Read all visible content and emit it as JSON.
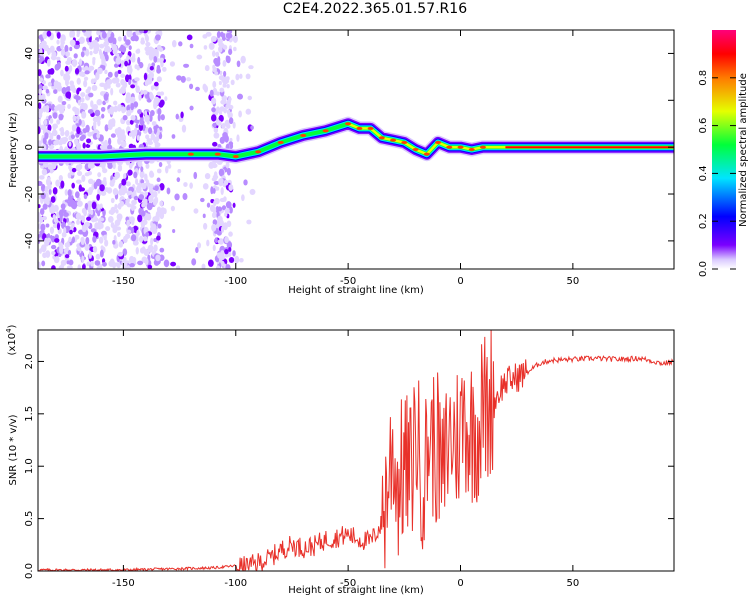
{
  "title": "C2E4.2022.365.01.57.R16",
  "chart_data": [
    {
      "type": "heatmap",
      "title": "C2E4.2022.365.01.57.R16",
      "xlabel": "Height of straight line (km)",
      "ylabel": "Frequency (Hz)",
      "xlim": [
        -188,
        95
      ],
      "ylim": [
        -52,
        50
      ],
      "xticks": [
        -150,
        -100,
        -50,
        0,
        50
      ],
      "yticks": [
        -40,
        -20,
        0,
        20,
        40
      ],
      "colorbar": {
        "label": "Normalized spectral amplitude",
        "ticks": [
          "0.0",
          "0.2",
          "0.4",
          "0.6",
          "0.8"
        ],
        "range": [
          0,
          1
        ],
        "colormap": [
          "#ffffff",
          "#7b00ff",
          "#0000ff",
          "#00e5ff",
          "#00ff3a",
          "#e5ff00",
          "#ff7a00",
          "#ff0000",
          "#ff007a"
        ]
      },
      "ridge": {
        "x": [
          -188,
          -160,
          -140,
          -120,
          -108,
          -100,
          -90,
          -80,
          -70,
          -60,
          -50,
          -45,
          -40,
          -35,
          -30,
          -25,
          -20,
          -15,
          -10,
          -5,
          0,
          5,
          10,
          20,
          30,
          50,
          70,
          95
        ],
        "y": [
          -4,
          -4,
          -3,
          -3,
          -3,
          -4,
          -2,
          2,
          5,
          7,
          10,
          8,
          8,
          4,
          3,
          2,
          -1,
          -3,
          2,
          0,
          0,
          -1,
          0,
          0,
          0,
          0,
          0,
          0
        ]
      },
      "grid": false
    },
    {
      "type": "line",
      "xlabel": "Height of straight line (km)",
      "ylabel": "SNR (10 * v/v)",
      "yscale_label": "(x10",
      "yscale_exp": "4",
      "xlim": [
        -188,
        95
      ],
      "ylim": [
        0,
        2.3
      ],
      "xticks": [
        -150,
        -100,
        -50,
        0,
        50
      ],
      "yticks": [
        "0.0",
        "0.5",
        "1.0",
        "1.5",
        "2.0"
      ],
      "line_color": "#e8312a",
      "series": [
        {
          "x": [
            -188,
            -170,
            -150,
            -130,
            -110,
            -100,
            -95,
            -90,
            -85,
            -80,
            -75,
            -70,
            -65,
            -60,
            -55,
            -50,
            -45,
            -40,
            -35,
            -32,
            -30,
            -28,
            -25,
            -22,
            -20,
            -18,
            -16,
            -14,
            -12,
            -10,
            -8,
            -6,
            -4,
            -2,
            0,
            2,
            4,
            6,
            8,
            10,
            12,
            14,
            16,
            18,
            20,
            25,
            30,
            35,
            40,
            50,
            60,
            70,
            80,
            90,
            95
          ],
          "y": [
            0.01,
            0.01,
            0.01,
            0.02,
            0.03,
            0.05,
            0.04,
            0.08,
            0.12,
            0.2,
            0.25,
            0.22,
            0.24,
            0.3,
            0.32,
            0.35,
            0.3,
            0.28,
            0.45,
            0.9,
            1.2,
            0.8,
            1.0,
            0.9,
            1.4,
            1.0,
            0.9,
            1.3,
            1.2,
            1.15,
            0.8,
            1.2,
            1.3,
            1.25,
            1.35,
            1.5,
            1.3,
            1.4,
            1.35,
            1.6,
            1.5,
            1.7,
            1.65,
            1.75,
            1.8,
            1.85,
            1.9,
            1.98,
            2.01,
            2.02,
            2.03,
            2.02,
            2.03,
            1.98,
            2.0
          ]
        }
      ],
      "grid": false
    }
  ]
}
